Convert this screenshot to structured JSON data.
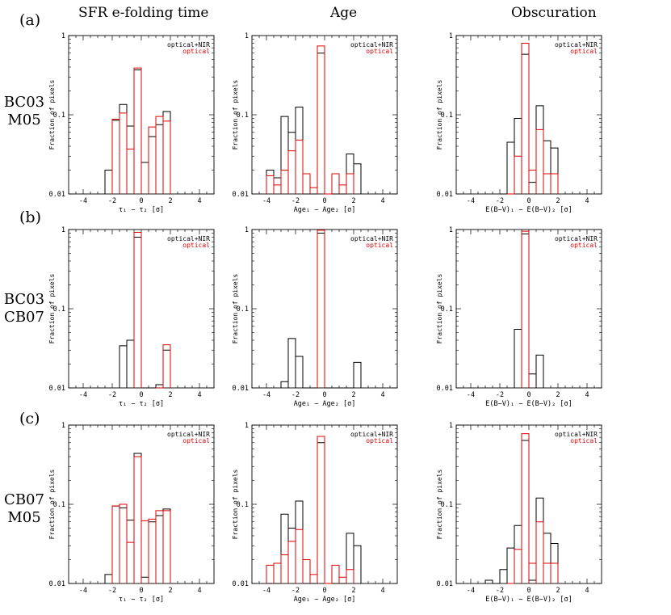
{
  "column_titles": [
    "SFR e-folding time",
    "Age",
    "Obscuration"
  ],
  "row_tags": [
    "(a)",
    "(b)",
    "(c)"
  ],
  "row_names": [
    [
      "BC03",
      "M05"
    ],
    [
      "BC03",
      "CB07"
    ],
    [
      "CB07",
      "M05"
    ]
  ],
  "colors": {
    "black": "#000000",
    "red": "#dd0000"
  },
  "chart_data": [
    {
      "id": "a-sfr",
      "type": "histogram",
      "row": 0,
      "col": 0,
      "ylabel": "Fraction of pixels",
      "xlabel": "τ₁ − τ₂ [σ]",
      "xlim": [
        -5,
        5
      ],
      "ylim": [
        0.01,
        1
      ],
      "yscale": "log",
      "xticks": [
        -4,
        -2,
        0,
        2,
        4
      ],
      "yticks": [
        1,
        0.1,
        0.01
      ],
      "ytick_labels": [
        "1",
        "0.1",
        "0.01"
      ],
      "legend": [
        "optical+NIR",
        "optical"
      ],
      "bin_edges": [
        -2.5,
        -2,
        -1.5,
        -1,
        -0.5,
        0,
        0.5,
        1,
        1.5,
        2
      ],
      "series": [
        {
          "name": "optical+NIR",
          "color": "black",
          "values": [
            0.02,
            0.085,
            0.135,
            0.072,
            0.37,
            0.025,
            0.053,
            0.075,
            0.11
          ]
        },
        {
          "name": "optical",
          "color": "red",
          "values": [
            null,
            0.088,
            0.105,
            0.037,
            0.39,
            null,
            0.07,
            0.095,
            0.083
          ]
        }
      ]
    },
    {
      "id": "a-age",
      "type": "histogram",
      "row": 0,
      "col": 1,
      "ylabel": "Fraction of pixels",
      "xlabel": "Age₁ − Age₂ [σ]",
      "xlim": [
        -5,
        5
      ],
      "ylim": [
        0.01,
        1
      ],
      "yscale": "log",
      "xticks": [
        -4,
        -2,
        0,
        2,
        4
      ],
      "yticks": [
        1,
        0.1,
        0.01
      ],
      "ytick_labels": [
        "1",
        "0.1",
        "0.01"
      ],
      "legend": [
        "optical+NIR",
        "optical"
      ],
      "bin_edges": [
        -4,
        -3.5,
        -3,
        -2.5,
        -2,
        -1.5,
        -1,
        -0.5,
        0,
        0.5,
        1,
        1.5,
        2,
        2.5
      ],
      "series": [
        {
          "name": "optical+NIR",
          "color": "black",
          "values": [
            0.02,
            0.016,
            0.095,
            0.06,
            0.125,
            0.01,
            0.01,
            0.6,
            0.01,
            0.01,
            0.01,
            0.032,
            0.024
          ]
        },
        {
          "name": "optical",
          "color": "red",
          "values": [
            0.017,
            0.013,
            0.02,
            0.035,
            0.048,
            0.018,
            0.012,
            0.74,
            0.01,
            0.018,
            0.013,
            0.018,
            null
          ]
        }
      ]
    },
    {
      "id": "a-obs",
      "type": "histogram",
      "row": 0,
      "col": 2,
      "ylabel": "Fraction of pixels",
      "xlabel": "E(B−V)₁ − E(B−V)₂ [σ]",
      "xlim": [
        -5,
        5
      ],
      "ylim": [
        0.01,
        1
      ],
      "yscale": "log",
      "xticks": [
        -4,
        -2,
        0,
        2,
        4
      ],
      "yticks": [
        1,
        0.1,
        0.01
      ],
      "ytick_labels": [
        "1",
        "0.1",
        "0.01"
      ],
      "legend": [
        "optical+NIR",
        "optical"
      ],
      "bin_edges": [
        -2,
        -1.5,
        -1,
        -0.5,
        0,
        0.5,
        1,
        1.5,
        2
      ],
      "series": [
        {
          "name": "optical+NIR",
          "color": "black",
          "values": [
            0.01,
            0.045,
            0.09,
            0.58,
            0.014,
            0.13,
            0.047,
            0.038
          ]
        },
        {
          "name": "optical",
          "color": "red",
          "values": [
            null,
            0.01,
            0.03,
            0.8,
            0.02,
            0.065,
            0.018,
            0.018
          ]
        }
      ]
    },
    {
      "id": "b-sfr",
      "type": "histogram",
      "row": 1,
      "col": 0,
      "ylabel": "Fraction of pixels",
      "xlabel": "τ₁ − τ₂ [σ]",
      "xlim": [
        -5,
        5
      ],
      "ylim": [
        0.01,
        1
      ],
      "yscale": "log",
      "xticks": [
        -4,
        -2,
        0,
        2,
        4
      ],
      "yticks": [
        1,
        0.1,
        0.01
      ],
      "ytick_labels": [
        "1",
        "0.1",
        "0.01"
      ],
      "legend": [
        "optical+NIR",
        "optical"
      ],
      "bin_edges": [
        -1.5,
        -1,
        -0.5,
        0,
        0.5,
        1,
        1.5,
        2
      ],
      "series": [
        {
          "name": "optical+NIR",
          "color": "black",
          "values": [
            0.034,
            0.04,
            0.8,
            0.01,
            0.01,
            0.011,
            0.03
          ]
        },
        {
          "name": "optical",
          "color": "red",
          "values": [
            null,
            null,
            0.92,
            null,
            null,
            0.01,
            0.035
          ]
        }
      ]
    },
    {
      "id": "b-age",
      "type": "histogram",
      "row": 1,
      "col": 1,
      "ylabel": "Fraction of pixels",
      "xlabel": "Age₁ − Age₂ [σ]",
      "xlim": [
        -5,
        5
      ],
      "ylim": [
        0.01,
        1
      ],
      "yscale": "log",
      "xticks": [
        -4,
        -2,
        0,
        2,
        4
      ],
      "yticks": [
        1,
        0.1,
        0.01
      ],
      "ytick_labels": [
        "1",
        "0.1",
        "0.01"
      ],
      "legend": [
        "optical+NIR",
        "optical"
      ],
      "bin_edges": [
        -3,
        -2.5,
        -2,
        -1.5,
        -1,
        -0.5,
        0,
        0.5,
        1,
        1.5,
        2,
        2.5
      ],
      "series": [
        {
          "name": "optical+NIR",
          "color": "black",
          "values": [
            0.012,
            0.042,
            0.025,
            0.01,
            0.01,
            0.9,
            0.01,
            0.01,
            0.01,
            0.01,
            0.021
          ]
        },
        {
          "name": "optical",
          "color": "red",
          "values": [
            null,
            null,
            null,
            null,
            null,
            0.98,
            null,
            null,
            null,
            null,
            null
          ]
        }
      ]
    },
    {
      "id": "b-obs",
      "type": "histogram",
      "row": 1,
      "col": 2,
      "ylabel": "Fraction of pixels",
      "xlabel": "E(B−V)₁ − E(B−V)₂ [σ]",
      "xlim": [
        -5,
        5
      ],
      "ylim": [
        0.01,
        1
      ],
      "yscale": "log",
      "xticks": [
        -4,
        -2,
        0,
        2,
        4
      ],
      "yticks": [
        1,
        0.1,
        0.01
      ],
      "ytick_labels": [
        "1",
        "0.1",
        "0.01"
      ],
      "legend": [
        "optical+NIR",
        "optical"
      ],
      "bin_edges": [
        -1,
        -0.5,
        0,
        0.5,
        1
      ],
      "series": [
        {
          "name": "optical+NIR",
          "color": "black",
          "values": [
            0.055,
            0.88,
            0.015,
            0.026
          ]
        },
        {
          "name": "optical",
          "color": "red",
          "values": [
            null,
            0.95,
            null,
            null
          ]
        }
      ]
    },
    {
      "id": "c-sfr",
      "type": "histogram",
      "row": 2,
      "col": 0,
      "ylabel": "Fraction of pixels",
      "xlabel": "τ₁ − τ₂ [σ]",
      "xlim": [
        -5,
        5
      ],
      "ylim": [
        0.01,
        1
      ],
      "yscale": "log",
      "xticks": [
        -4,
        -2,
        0,
        2,
        4
      ],
      "yticks": [
        1,
        0.1,
        0.01
      ],
      "ytick_labels": [
        "1",
        "0.1",
        "0.01"
      ],
      "legend": [
        "optical+NIR",
        "optical"
      ],
      "bin_edges": [
        -2.5,
        -2,
        -1.5,
        -1,
        -0.5,
        0,
        0.5,
        1,
        1.5,
        2
      ],
      "series": [
        {
          "name": "optical+NIR",
          "color": "black",
          "values": [
            0.013,
            0.095,
            0.09,
            0.063,
            0.44,
            0.012,
            0.06,
            0.072,
            0.087
          ]
        },
        {
          "name": "optical",
          "color": "red",
          "values": [
            null,
            0.095,
            0.1,
            0.033,
            0.4,
            0.062,
            0.065,
            0.083,
            0.083
          ]
        }
      ]
    },
    {
      "id": "c-age",
      "type": "histogram",
      "row": 2,
      "col": 1,
      "ylabel": "Fraction of pixels",
      "xlabel": "Age₁ − Age₂ [σ]",
      "xlim": [
        -5,
        5
      ],
      "ylim": [
        0.01,
        1
      ],
      "yscale": "log",
      "xticks": [
        -4,
        -2,
        0,
        2,
        4
      ],
      "yticks": [
        1,
        0.1,
        0.01
      ],
      "ytick_labels": [
        "1",
        "0.1",
        "0.01"
      ],
      "legend": [
        "optical+NIR",
        "optical"
      ],
      "bin_edges": [
        -4,
        -3.5,
        -3,
        -2.5,
        -2,
        -1.5,
        -1,
        -0.5,
        0,
        0.5,
        1,
        1.5,
        2,
        2.5
      ],
      "series": [
        {
          "name": "optical+NIR",
          "color": "black",
          "values": [
            0.01,
            0.01,
            0.075,
            0.05,
            0.11,
            0.01,
            0.01,
            0.6,
            0.01,
            0.01,
            0.01,
            0.043,
            0.03
          ]
        },
        {
          "name": "optical",
          "color": "red",
          "values": [
            0.017,
            0.018,
            0.023,
            0.034,
            0.048,
            0.02,
            0.013,
            0.72,
            0.01,
            0.017,
            0.012,
            0.015,
            null
          ]
        }
      ]
    },
    {
      "id": "c-obs",
      "type": "histogram",
      "row": 2,
      "col": 2,
      "ylabel": "Fraction of pixels",
      "xlabel": "E(B−V)₁ − E(B−V)₂ [σ]",
      "xlim": [
        -5,
        5
      ],
      "ylim": [
        0.01,
        1
      ],
      "yscale": "log",
      "xticks": [
        -4,
        -2,
        0,
        2,
        4
      ],
      "yticks": [
        1,
        0.1,
        0.01
      ],
      "ytick_labels": [
        "1",
        "0.1",
        "0.01"
      ],
      "legend": [
        "optical+NIR",
        "optical"
      ],
      "bin_edges": [
        -3,
        -2.5,
        -2,
        -1.5,
        -1,
        -0.5,
        0,
        0.5,
        1,
        1.5,
        2
      ],
      "series": [
        {
          "name": "optical+NIR",
          "color": "black",
          "values": [
            0.011,
            0.01,
            0.015,
            0.028,
            0.054,
            0.64,
            0.011,
            0.12,
            0.043,
            0.032
          ]
        },
        {
          "name": "optical",
          "color": "red",
          "values": [
            null,
            null,
            null,
            0.01,
            0.027,
            0.78,
            0.018,
            0.06,
            0.018,
            0.018
          ]
        }
      ]
    }
  ]
}
